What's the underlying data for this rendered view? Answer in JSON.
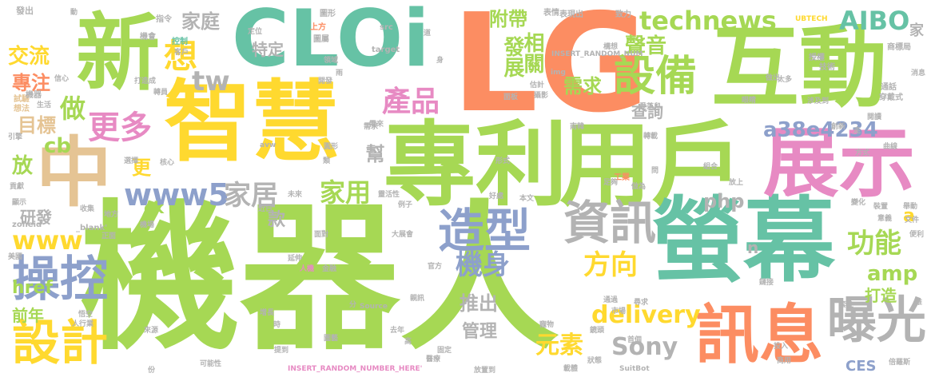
{
  "palette": {
    "green": "#a6d854",
    "teal": "#66c2a5",
    "orange": "#fc8d62",
    "blue": "#8da0cb",
    "pink": "#e78ac3",
    "yellow": "#ffd92f",
    "tan": "#e5c494",
    "gray": "#b3b3b3"
  },
  "words": [
    {
      "text": "機器人",
      "color": "#a6d854"
    },
    {
      "text": "專利",
      "color": "#a6d854"
    },
    {
      "text": "用戶",
      "color": "#a6d854"
    },
    {
      "text": "智慧",
      "color": "#ffd92f"
    },
    {
      "text": "LG",
      "color": "#fc8d62"
    },
    {
      "text": "互動",
      "color": "#a6d854"
    },
    {
      "text": "CLOi",
      "color": "#66c2a5"
    },
    {
      "text": "新",
      "color": "#a6d854"
    },
    {
      "text": "螢幕",
      "color": "#66c2a5"
    },
    {
      "text": "展示",
      "color": "#e78ac3"
    },
    {
      "text": "中",
      "color": "#e5c494"
    },
    {
      "text": "訊息",
      "color": "#fc8d62"
    },
    {
      "text": "曝光",
      "color": "#b3b3b3"
    },
    {
      "text": "設計",
      "color": "#ffd92f"
    },
    {
      "text": "操控",
      "color": "#8da0cb"
    },
    {
      "text": "造型",
      "color": "#8da0cb"
    },
    {
      "text": "資訊",
      "color": "#b3b3b3"
    },
    {
      "text": "設備",
      "color": "#a6d854"
    },
    {
      "text": "technews",
      "color": "#a6d854"
    },
    {
      "text": "產品",
      "color": "#e78ac3"
    },
    {
      "text": "更多",
      "color": "#e78ac3"
    },
    {
      "text": "想",
      "color": "#ffd92f"
    },
    {
      "text": "www5",
      "color": "#8da0cb"
    },
    {
      "text": "家居",
      "color": "#b3b3b3"
    },
    {
      "text": "家用",
      "color": "#a6d854"
    },
    {
      "text": "www",
      "color": "#ffd92f"
    },
    {
      "text": "機身",
      "color": "#8da0cb"
    },
    {
      "text": "方向",
      "color": "#ffd92f"
    },
    {
      "text": "功能",
      "color": "#a6d854"
    },
    {
      "text": "AIBO",
      "color": "#66c2a5"
    },
    {
      "text": "tw",
      "color": "#b3b3b3"
    },
    {
      "text": "做",
      "color": "#a6d854"
    },
    {
      "text": "a38e4234",
      "color": "#8da0cb"
    },
    {
      "text": "相關",
      "color": "#a6d854"
    },
    {
      "text": "發展",
      "color": "#a6d854"
    },
    {
      "text": "附帶",
      "color": "#a6d854"
    },
    {
      "text": "聲音",
      "color": "#a6d854"
    },
    {
      "text": "需求",
      "color": "#a6d854"
    },
    {
      "text": "元素",
      "color": "#ffd92f"
    },
    {
      "text": "delivery",
      "color": "#ffd92f"
    },
    {
      "text": "Sony",
      "color": "#b3b3b3"
    },
    {
      "text": "amp",
      "color": "#a6d854"
    },
    {
      "text": "推出",
      "color": "#b3b3b3"
    },
    {
      "text": "款",
      "color": "#b3b3b3"
    },
    {
      "text": "前年",
      "color": "#a6d854"
    },
    {
      "text": "家庭",
      "color": "#b3b3b3"
    },
    {
      "text": "交流",
      "color": "#ffd92f"
    },
    {
      "text": "專注",
      "color": "#fc8d62"
    },
    {
      "text": "目標",
      "color": "#e5c494"
    },
    {
      "text": "cb",
      "color": "#a6d854"
    },
    {
      "text": "放",
      "color": "#a6d854"
    },
    {
      "text": "更",
      "color": "#ffd92f"
    },
    {
      "text": "研發",
      "color": "#b3b3b3"
    },
    {
      "text": "ck",
      "color": "#a6d854"
    },
    {
      "text": "php",
      "color": "#b3b3b3"
    },
    {
      "text": "查詢",
      "color": "#b3b3b3"
    },
    {
      "text": "特定",
      "color": "#b3b3b3"
    },
    {
      "text": "href",
      "color": "#a6d854"
    },
    {
      "text": "管理",
      "color": "#b3b3b3"
    },
    {
      "text": "打造",
      "color": "#a6d854"
    },
    {
      "text": "幫",
      "color": "#b3b3b3"
    },
    {
      "text": "CES",
      "color": "#8da0cb"
    },
    {
      "text": "a",
      "color": "#ffd92f"
    },
    {
      "text": "n",
      "color": "#b3b3b3"
    },
    {
      "text": "家",
      "color": "#b3b3b3"
    },
    {
      "text": "發出",
      "color": "#b3b3b3"
    },
    {
      "text": "試驗",
      "color": "#e5c494"
    },
    {
      "text": "想法",
      "color": "#e5c494"
    },
    {
      "text": "機器",
      "color": "#b3b3b3"
    },
    {
      "text": "生活",
      "color": "#b3b3b3"
    },
    {
      "text": "指令",
      "color": "#b3b3b3"
    },
    {
      "text": "機會",
      "color": "#b3b3b3"
    },
    {
      "text": "控制",
      "color": "#66c2a5"
    },
    {
      "text": "客戶",
      "color": "#b3b3b3"
    },
    {
      "text": "打造成",
      "color": "#b3b3b3"
    },
    {
      "text": "信心",
      "color": "#b3b3b3"
    },
    {
      "text": "上方",
      "color": "#fc8d62"
    },
    {
      "text": "圖形",
      "color": "#b3b3b3"
    },
    {
      "text": "圖屬",
      "color": "#b3b3b3"
    },
    {
      "text": "定位",
      "color": "#b3b3b3"
    },
    {
      "text": "領域",
      "color": "#b3b3b3"
    },
    {
      "text": "src",
      "color": "#b3b3b3"
    },
    {
      "text": "target",
      "color": "#b3b3b3"
    },
    {
      "text": "道",
      "color": "#b3b3b3"
    },
    {
      "text": "身",
      "color": "#b3b3b3"
    },
    {
      "text": "表情",
      "color": "#b3b3b3"
    },
    {
      "text": "表現出",
      "color": "#b3b3b3"
    },
    {
      "text": "致力",
      "color": "#b3b3b3"
    },
    {
      "text": "動",
      "color": "#b3b3b3"
    },
    {
      "text": "UBTECH",
      "color": "#ffd92f"
    },
    {
      "text": "商標局",
      "color": "#b3b3b3"
    },
    {
      "text": "授權",
      "color": "#b3b3b3"
    },
    {
      "text": "技術",
      "color": "#b3b3b3"
    },
    {
      "text": "消息",
      "color": "#b3b3b3"
    },
    {
      "text": "太多",
      "color": "#b3b3b3"
    },
    {
      "text": "做出",
      "color": "#b3b3b3"
    },
    {
      "text": "通話",
      "color": "#b3b3b3"
    },
    {
      "text": "穿戴式",
      "color": "#b3b3b3"
    },
    {
      "text": "涉及到",
      "color": "#b3b3b3"
    },
    {
      "text": "眼睛",
      "color": "#b3b3b3"
    },
    {
      "text": "構想",
      "color": "#b3b3b3"
    },
    {
      "text": "INSERT_RANDOM_NUM",
      "color": "#b3b3b3"
    },
    {
      "text": "img",
      "color": "#b3b3b3"
    },
    {
      "text": "開發",
      "color": "#b3b3b3"
    },
    {
      "text": "估計",
      "color": "#b3b3b3"
    },
    {
      "text": "攝影",
      "color": "#b3b3b3"
    },
    {
      "text": "面板",
      "color": "#b3b3b3"
    },
    {
      "text": "雨",
      "color": "#b3b3b3"
    },
    {
      "text": "轉員",
      "color": "#b3b3b3"
    },
    {
      "text": "愛范兒",
      "color": "#b3b3b3"
    },
    {
      "text": "閱讀",
      "color": "#b3b3b3"
    },
    {
      "text": "創新",
      "color": "#b3b3b3"
    },
    {
      "text": "走",
      "color": "#b3b3b3"
    },
    {
      "text": "需求",
      "color": "#b3b3b3"
    },
    {
      "text": "南韓",
      "color": "#b3b3b3"
    },
    {
      "text": "轉載",
      "color": "#b3b3b3"
    },
    {
      "text": "曲線",
      "color": "#b3b3b3"
    },
    {
      "text": "方式",
      "color": "#b3b3b3"
    },
    {
      "text": "引擎",
      "color": "#b3b3b3"
    },
    {
      "text": "貢獻",
      "color": "#b3b3b3"
    },
    {
      "text": "選擇",
      "color": "#b3b3b3"
    },
    {
      "text": "核心",
      "color": "#b3b3b3"
    },
    {
      "text": "avw",
      "color": "#b3b3b3"
    },
    {
      "text": "圓形",
      "color": "#b3b3b3"
    },
    {
      "text": "類",
      "color": "#b3b3b3"
    },
    {
      "text": "形式",
      "color": "#b3b3b3"
    },
    {
      "text": "組合",
      "color": "#b3b3b3"
    },
    {
      "text": "問",
      "color": "#b3b3b3"
    },
    {
      "text": "工業",
      "color": "#fc8d62"
    },
    {
      "text": "足夠",
      "color": "#b3b3b3"
    },
    {
      "text": "做為",
      "color": "#b3b3b3"
    },
    {
      "text": "放上",
      "color": "#b3b3b3"
    },
    {
      "text": "好處",
      "color": "#b3b3b3"
    },
    {
      "text": "本文",
      "color": "#b3b3b3"
    },
    {
      "text": "顯示",
      "color": "#b3b3b3"
    },
    {
      "text": "收集",
      "color": "#b3b3b3"
    },
    {
      "text": "地方",
      "color": "#b3b3b3"
    },
    {
      "text": "未來",
      "color": "#b3b3b3"
    },
    {
      "text": "靈活性",
      "color": "#b3b3b3"
    },
    {
      "text": "近日",
      "color": "#b3b3b3"
    },
    {
      "text": "裝置",
      "color": "#b3b3b3"
    },
    {
      "text": "舉動",
      "color": "#b3b3b3"
    },
    {
      "text": "變化",
      "color": "#b3b3b3"
    },
    {
      "text": "意義",
      "color": "#b3b3b3"
    },
    {
      "text": "文件",
      "color": "#b3b3b3"
    },
    {
      "text": "zoneid",
      "color": "#b3b3b3"
    },
    {
      "text": "_blank'",
      "color": "#b3b3b3"
    },
    {
      "text": "正面",
      "color": "#b3b3b3"
    },
    {
      "text": "機場",
      "color": "#b3b3b3"
    },
    {
      "text": "面對",
      "color": "#b3b3b3"
    },
    {
      "text": "大展會",
      "color": "#b3b3b3"
    },
    {
      "text": "便利",
      "color": "#b3b3b3"
    },
    {
      "text": "美國",
      "color": "#b3b3b3"
    },
    {
      "text": "延伸",
      "color": "#b3b3b3"
    },
    {
      "text": "人機",
      "color": "#e78ac3"
    },
    {
      "text": "金融",
      "color": "#b3b3b3"
    },
    {
      "text": "官方",
      "color": "#b3b3b3"
    },
    {
      "text": "鏈接",
      "color": "#b3b3b3"
    },
    {
      "text": "悟空",
      "color": "#b3b3b3"
    },
    {
      "text": "人行業",
      "color": "#b3b3b3"
    },
    {
      "text": "分",
      "color": "#b3b3b3"
    },
    {
      "text": "Source",
      "color": "#b3b3b3"
    },
    {
      "text": "親訊",
      "color": "#b3b3b3"
    },
    {
      "text": "通過",
      "color": "#b3b3b3"
    },
    {
      "text": "尋求",
      "color": "#b3b3b3"
    },
    {
      "text": "市場",
      "color": "#b3b3b3"
    },
    {
      "text": "套註",
      "color": "#b3b3b3"
    },
    {
      "text": "推",
      "color": "#b3b3b3"
    },
    {
      "text": "增長",
      "color": "#b3b3b3"
    },
    {
      "text": "時",
      "color": "#b3b3b3"
    },
    {
      "text": "來源",
      "color": "#b3b3b3"
    },
    {
      "text": "提到",
      "color": "#b3b3b3"
    },
    {
      "text": "圖藝",
      "color": "#b3b3b3"
    },
    {
      "text": "去年",
      "color": "#b3b3b3"
    },
    {
      "text": "高",
      "color": "#b3b3b3"
    },
    {
      "text": "固定",
      "color": "#b3b3b3"
    },
    {
      "text": "寵物",
      "color": "#b3b3b3"
    },
    {
      "text": "鏡頭",
      "color": "#b3b3b3"
    },
    {
      "text": "首個",
      "color": "#b3b3b3"
    },
    {
      "text": "投入",
      "color": "#b3b3b3"
    },
    {
      "text": "商用",
      "color": "#b3b3b3"
    },
    {
      "text": "倍羅斯",
      "color": "#b3b3b3"
    },
    {
      "text": "份",
      "color": "#b3b3b3"
    },
    {
      "text": "可能性",
      "color": "#b3b3b3"
    },
    {
      "text": "INSERT_RANDOM_NUMBER_HERE'",
      "color": "#e78ac3"
    },
    {
      "text": "醫療",
      "color": "#b3b3b3"
    },
    {
      "text": "放置到",
      "color": "#b3b3b3"
    },
    {
      "text": "載體",
      "color": "#b3b3b3"
    },
    {
      "text": "狀態",
      "color": "#b3b3b3"
    },
    {
      "text": "SuitBot",
      "color": "#b3b3b3"
    },
    {
      "text": "例子",
      "color": "#b3b3b3"
    },
    {
      "text": "需來",
      "color": "#b3b3b3"
    }
  ]
}
